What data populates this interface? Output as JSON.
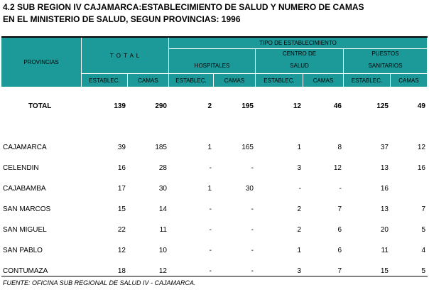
{
  "header": {
    "title_lines": [
      "4.2  SUB REGION IV CAJAMARCA:ESTABLECIMIENTO DE SALUD Y NUMERO DE CAMAS",
      "EN EL MINISTERIO DE SALUD, SEGUN PROVINCIAS: 1996"
    ]
  },
  "table": {
    "head": {
      "provincias": "PROVINCIAS",
      "total": "T O T A L",
      "tipo": "TIPO  DE  ESTABLECIMIENTO",
      "groups": [
        [
          "HOSPITALES"
        ],
        [
          "CENTRO DE",
          "SALUD"
        ],
        [
          "PUESTOS",
          "SANITARIOS"
        ]
      ],
      "sub": [
        "ESTABLEC.",
        "CAMAS",
        "ESTABLEC.",
        "CAMAS",
        "ESTABLEC.",
        "CAMAS",
        "ESTABLEC.",
        "CAMAS"
      ]
    },
    "total_row": [
      "TOTAL",
      139,
      290,
      2,
      195,
      12,
      46,
      125,
      49
    ],
    "rows": [
      [
        "CAJAMARCA",
        39,
        185,
        1,
        165,
        1,
        8,
        37,
        12
      ],
      [
        "CELENDIN",
        16,
        28,
        "-",
        "-",
        3,
        12,
        13,
        16
      ],
      [
        "CAJABAMBA",
        17,
        30,
        1,
        30,
        "-",
        "-",
        16,
        null
      ],
      [
        "SAN MARCOS",
        15,
        14,
        "-",
        "-",
        2,
        7,
        13,
        7
      ],
      [
        "SAN MIGUEL",
        22,
        11,
        "-",
        "-",
        2,
        6,
        20,
        5
      ],
      [
        "SAN PABLO",
        12,
        10,
        "-",
        "-",
        1,
        6,
        11,
        4
      ],
      [
        "CONTUMAZA",
        18,
        12,
        "-",
        "-",
        3,
        7,
        15,
        5
      ]
    ]
  },
  "footer": {
    "source": "FUENTE: OFICINA SUB REGIONAL DE SALUD IV - CAJAMARCA."
  }
}
